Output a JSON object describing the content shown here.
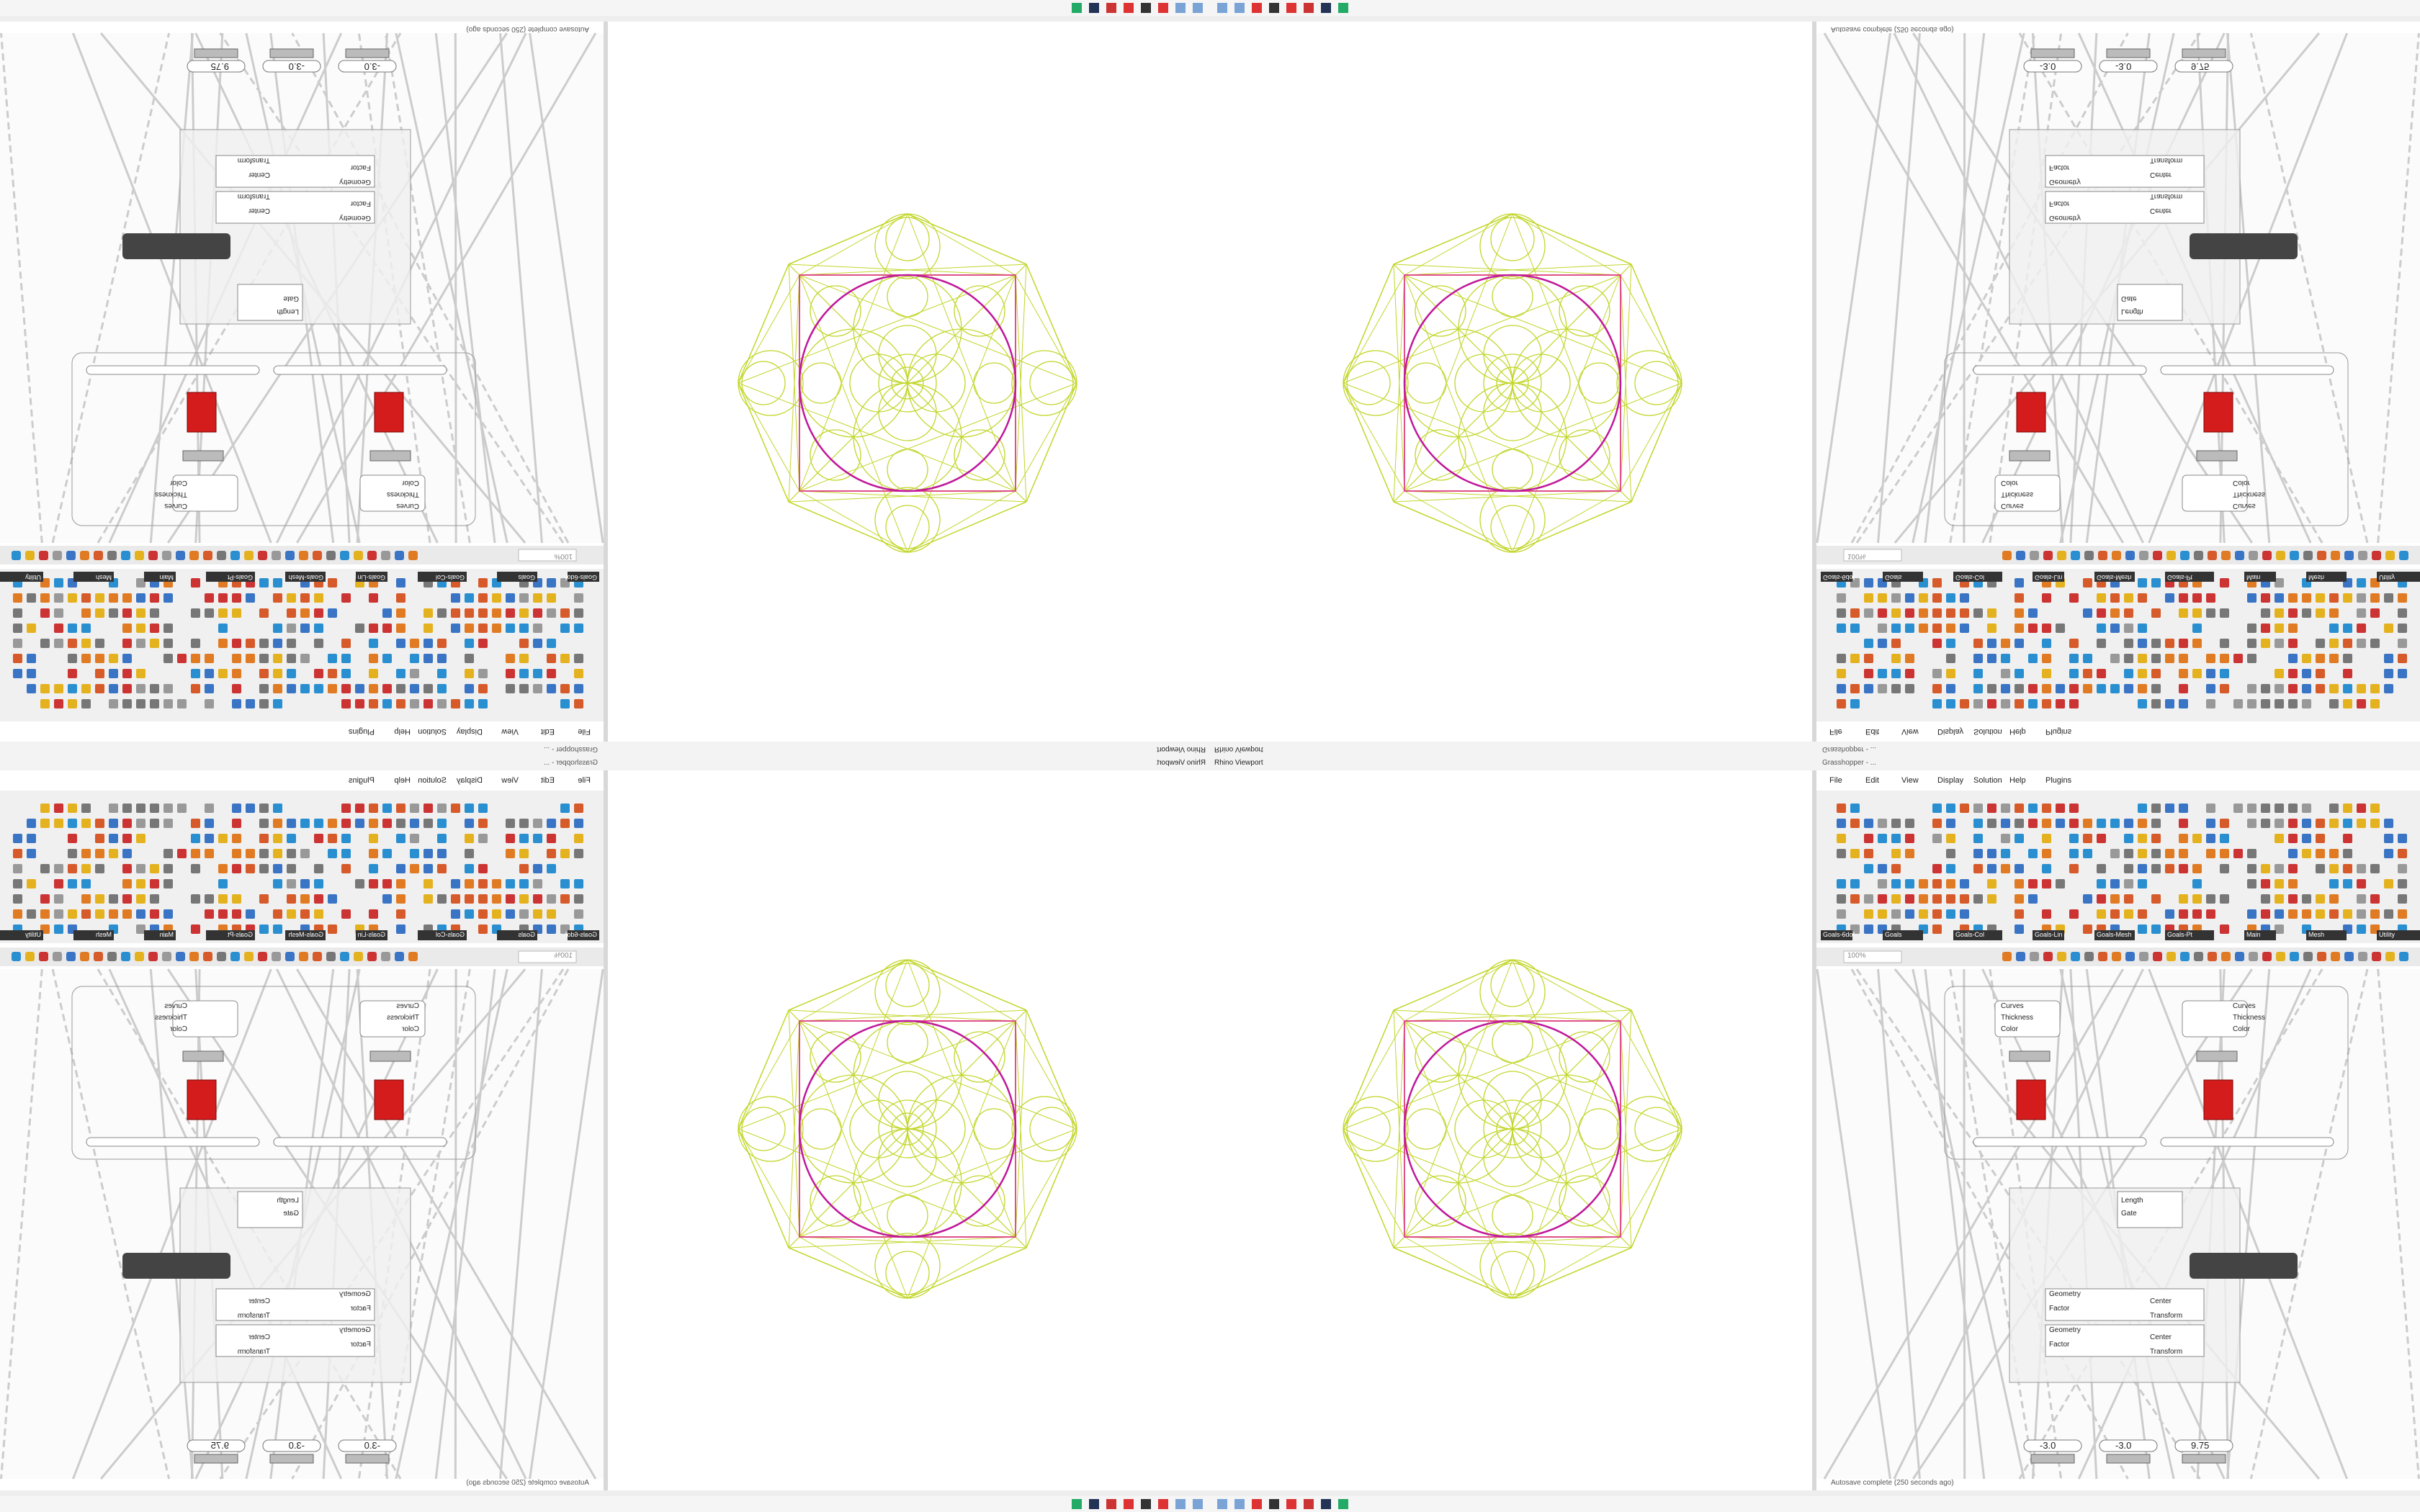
{
  "window": {
    "title": "Grasshopper - ...",
    "menu": [
      "File",
      "Edit",
      "View",
      "Display",
      "Solution",
      "Help",
      "Plugins"
    ],
    "tabs": [
      "Goals-6dof",
      "Goals",
      "Goals-Col",
      "Goals-Lin",
      "Goals-Mesh",
      "Goals-Pt",
      "Main",
      "Mesh",
      "Utility"
    ],
    "zoom": "100%",
    "status": "Autosave complete (250 seconds ago)"
  },
  "viewport": {
    "label": "Rhino Viewport"
  },
  "canvas": {
    "inputs_a": [
      "Curves",
      "Thickness",
      "Color"
    ],
    "inputs_b": [
      "Length",
      "Gate"
    ],
    "inputs_c": [
      "Geometry",
      "Center",
      "Factor",
      "Transform"
    ],
    "sliders": [
      "-3.0",
      "-3.0",
      "9.75"
    ]
  }
}
